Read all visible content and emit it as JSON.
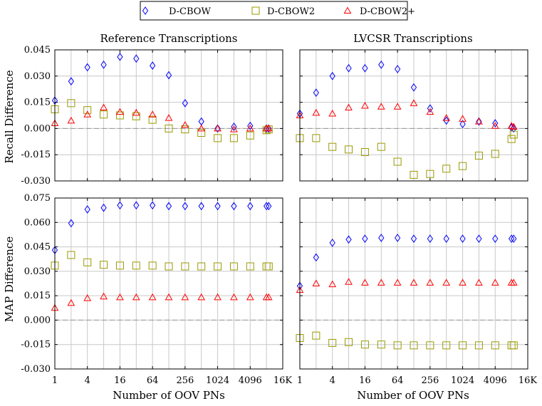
{
  "legend": [
    {
      "name": "D-CBOW",
      "marker": "diamond",
      "color": "#0000ff"
    },
    {
      "name": "D-CBOW2",
      "marker": "square",
      "color": "#9a9a00"
    },
    {
      "name": "D-CBOW2+",
      "marker": "triangle",
      "color": "#ff0000"
    }
  ],
  "column_titles": [
    "Reference Transcriptions",
    "LVCSR Transcriptions"
  ],
  "row_titles": [
    "Recall Difference",
    "MAP Difference"
  ],
  "xlabel": "Number of OOV PNs",
  "x_ticks": [
    "1",
    "4",
    "16",
    "64",
    "256",
    "1024",
    "4096",
    "16K"
  ],
  "y_ticks": {
    "recall": [
      "0.045",
      "0.030",
      "0.015",
      "0.000",
      "-0.015",
      "-0.030"
    ],
    "map": [
      "0.075",
      "0.060",
      "0.045",
      "0.030",
      "0.015",
      "0.000",
      "-0.015",
      "-0.030"
    ]
  },
  "chart_data": [
    {
      "type": "scatter",
      "title": "Reference Transcriptions",
      "ylabel": "Recall Difference",
      "xlabel": "",
      "x_scale": "log2",
      "x": [
        1,
        2,
        4,
        8,
        16,
        32,
        64,
        128,
        256,
        512,
        1024,
        2048,
        4096,
        8192,
        9000
      ],
      "ylim": [
        -0.03,
        0.045
      ],
      "grid": true,
      "series": [
        {
          "name": "D-CBOW",
          "values": [
            0.016,
            0.027,
            0.035,
            0.0365,
            0.041,
            0.04,
            0.036,
            0.0305,
            0.0145,
            0.004,
            0.0,
            0.001,
            0.0015,
            0.0,
            0.0
          ]
        },
        {
          "name": "D-CBOW2",
          "values": [
            0.011,
            0.0145,
            0.0105,
            0.008,
            0.0075,
            0.007,
            0.005,
            0.0,
            -0.0005,
            -0.0025,
            -0.0055,
            -0.0055,
            -0.004,
            -0.001,
            -0.0005
          ]
        },
        {
          "name": "D-CBOW2+",
          "values": [
            0.003,
            0.0045,
            0.008,
            0.012,
            0.0095,
            0.009,
            0.008,
            0.006,
            0.002,
            0.0,
            0.0,
            -0.0005,
            0.0,
            0.0,
            0.0
          ]
        }
      ]
    },
    {
      "type": "scatter",
      "title": "LVCSR Transcriptions",
      "ylabel": "",
      "xlabel": "",
      "x_scale": "log2",
      "x": [
        1,
        2,
        4,
        8,
        16,
        32,
        64,
        128,
        256,
        512,
        1024,
        2048,
        4096,
        8192,
        9000
      ],
      "ylim": [
        -0.03,
        0.045
      ],
      "grid": true,
      "series": [
        {
          "name": "D-CBOW",
          "values": [
            0.0085,
            0.0205,
            0.03,
            0.0345,
            0.0345,
            0.0365,
            0.034,
            0.0235,
            0.0115,
            0.0045,
            0.0025,
            0.004,
            0.003,
            0.0005,
            0.0
          ]
        },
        {
          "name": "D-CBOW2",
          "values": [
            -0.0055,
            -0.0055,
            -0.0105,
            -0.012,
            -0.0135,
            -0.0105,
            -0.019,
            -0.0265,
            -0.026,
            -0.023,
            -0.0215,
            -0.0155,
            -0.0145,
            -0.006,
            -0.0035
          ]
        },
        {
          "name": "D-CBOW2+",
          "values": [
            0.0075,
            0.009,
            0.0085,
            0.012,
            0.013,
            0.0125,
            0.0125,
            0.0145,
            0.0095,
            0.006,
            0.0055,
            0.004,
            0.0015,
            0.0015,
            0.001
          ]
        }
      ]
    },
    {
      "type": "scatter",
      "title": "",
      "ylabel": "MAP Difference",
      "xlabel": "Number of OOV PNs",
      "x_scale": "log2",
      "x": [
        1,
        2,
        4,
        8,
        16,
        32,
        64,
        128,
        256,
        512,
        1024,
        2048,
        4096,
        8192,
        9000
      ],
      "ylim": [
        -0.03,
        0.075
      ],
      "grid": true,
      "series": [
        {
          "name": "D-CBOW",
          "values": [
            0.043,
            0.0595,
            0.068,
            0.069,
            0.0705,
            0.0705,
            0.0705,
            0.07,
            0.07,
            0.07,
            0.07,
            0.07,
            0.07,
            0.07,
            0.07
          ]
        },
        {
          "name": "D-CBOW2",
          "values": [
            0.0335,
            0.04,
            0.0355,
            0.034,
            0.0335,
            0.0335,
            0.0335,
            0.033,
            0.033,
            0.033,
            0.033,
            0.033,
            0.033,
            0.033,
            0.033
          ]
        },
        {
          "name": "D-CBOW2+",
          "values": [
            0.0075,
            0.0105,
            0.0135,
            0.0145,
            0.014,
            0.014,
            0.014,
            0.014,
            0.014,
            0.014,
            0.014,
            0.014,
            0.014,
            0.014,
            0.014
          ]
        }
      ]
    },
    {
      "type": "scatter",
      "title": "",
      "ylabel": "",
      "xlabel": "Number of OOV PNs",
      "x_scale": "log2",
      "x": [
        1,
        2,
        4,
        8,
        16,
        32,
        64,
        128,
        256,
        512,
        1024,
        2048,
        4096,
        8192,
        9000
      ],
      "ylim": [
        -0.03,
        0.075
      ],
      "grid": true,
      "series": [
        {
          "name": "D-CBOW",
          "values": [
            0.021,
            0.0385,
            0.0475,
            0.0495,
            0.05,
            0.0505,
            0.0505,
            0.05,
            0.05,
            0.05,
            0.05,
            0.05,
            0.05,
            0.05,
            0.05
          ]
        },
        {
          "name": "D-CBOW2",
          "values": [
            -0.011,
            -0.0095,
            -0.014,
            -0.0135,
            -0.015,
            -0.015,
            -0.0155,
            -0.0155,
            -0.0155,
            -0.0155,
            -0.0155,
            -0.0155,
            -0.0155,
            -0.0155,
            -0.0155
          ]
        },
        {
          "name": "D-CBOW2+",
          "values": [
            0.0185,
            0.0225,
            0.022,
            0.0235,
            0.023,
            0.023,
            0.023,
            0.023,
            0.023,
            0.023,
            0.023,
            0.023,
            0.023,
            0.023,
            0.023
          ]
        }
      ]
    }
  ]
}
